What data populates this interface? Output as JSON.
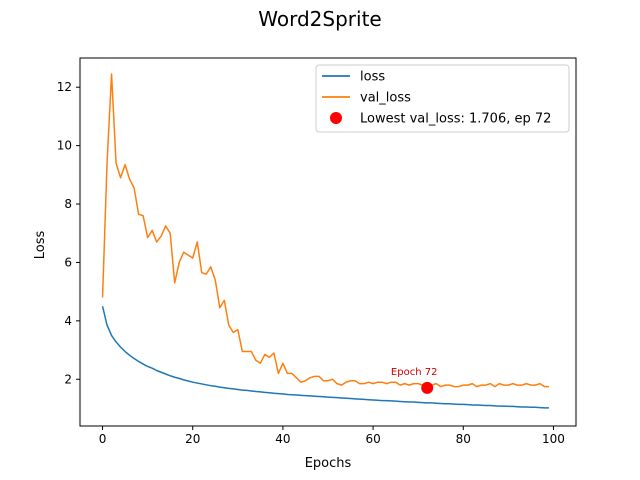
{
  "chart_data": {
    "type": "line",
    "title": "Word2Sprite",
    "xlabel": "Epochs",
    "ylabel": "Loss",
    "xlim": [
      -5,
      105
    ],
    "ylim": [
      0.4,
      13.0
    ],
    "xticks": [
      0,
      20,
      40,
      60,
      80,
      100
    ],
    "yticks": [
      2,
      4,
      6,
      8,
      10,
      12
    ],
    "legend_placement": "top-right",
    "grid": false,
    "series": [
      {
        "name": "loss",
        "color": "#1f77b4",
        "x_start": 0,
        "values": [
          4.5,
          3.85,
          3.5,
          3.28,
          3.1,
          2.95,
          2.82,
          2.71,
          2.61,
          2.52,
          2.44,
          2.38,
          2.3,
          2.24,
          2.18,
          2.12,
          2.07,
          2.03,
          1.98,
          1.94,
          1.9,
          1.87,
          1.84,
          1.81,
          1.78,
          1.76,
          1.73,
          1.71,
          1.69,
          1.67,
          1.65,
          1.63,
          1.62,
          1.6,
          1.58,
          1.57,
          1.55,
          1.54,
          1.52,
          1.51,
          1.5,
          1.48,
          1.47,
          1.46,
          1.45,
          1.44,
          1.43,
          1.42,
          1.41,
          1.4,
          1.39,
          1.38,
          1.37,
          1.36,
          1.35,
          1.34,
          1.33,
          1.32,
          1.31,
          1.3,
          1.29,
          1.28,
          1.27,
          1.27,
          1.26,
          1.25,
          1.24,
          1.23,
          1.22,
          1.22,
          1.21,
          1.2,
          1.19,
          1.19,
          1.18,
          1.17,
          1.16,
          1.16,
          1.15,
          1.14,
          1.14,
          1.13,
          1.12,
          1.12,
          1.11,
          1.1,
          1.1,
          1.09,
          1.08,
          1.08,
          1.07,
          1.07,
          1.06,
          1.05,
          1.05,
          1.04,
          1.04,
          1.03,
          1.02,
          1.02
        ]
      },
      {
        "name": "val_loss",
        "color": "#ff7f0e",
        "x_start": 0,
        "values": [
          4.8,
          9.4,
          12.45,
          9.4,
          8.9,
          9.35,
          8.85,
          8.55,
          7.65,
          7.6,
          6.85,
          7.1,
          6.7,
          6.9,
          7.25,
          7.0,
          5.3,
          6.0,
          6.35,
          6.25,
          6.15,
          6.7,
          5.65,
          5.6,
          5.85,
          5.4,
          4.45,
          4.7,
          3.85,
          3.6,
          3.7,
          2.95,
          2.95,
          2.95,
          2.65,
          2.55,
          2.85,
          2.75,
          2.9,
          2.2,
          2.55,
          2.2,
          2.2,
          2.05,
          1.9,
          1.95,
          2.05,
          2.1,
          2.1,
          1.95,
          1.95,
          2.0,
          1.85,
          1.8,
          1.9,
          1.95,
          1.95,
          1.85,
          1.85,
          1.9,
          1.85,
          1.9,
          1.9,
          1.85,
          1.9,
          1.9,
          1.8,
          1.85,
          1.8,
          1.85,
          1.85,
          1.8,
          1.706,
          1.8,
          1.85,
          1.75,
          1.8,
          1.8,
          1.75,
          1.75,
          1.8,
          1.8,
          1.85,
          1.75,
          1.8,
          1.8,
          1.85,
          1.75,
          1.85,
          1.8,
          1.8,
          1.85,
          1.8,
          1.8,
          1.85,
          1.8,
          1.8,
          1.85,
          1.75,
          1.75
        ]
      }
    ],
    "highlight": {
      "name": "Lowest val_loss: 1.706, ep 72",
      "x": 72,
      "y": 1.706,
      "color": "#ff0000",
      "annotation": "Epoch 72",
      "annotation_color": "#cc0000"
    }
  }
}
